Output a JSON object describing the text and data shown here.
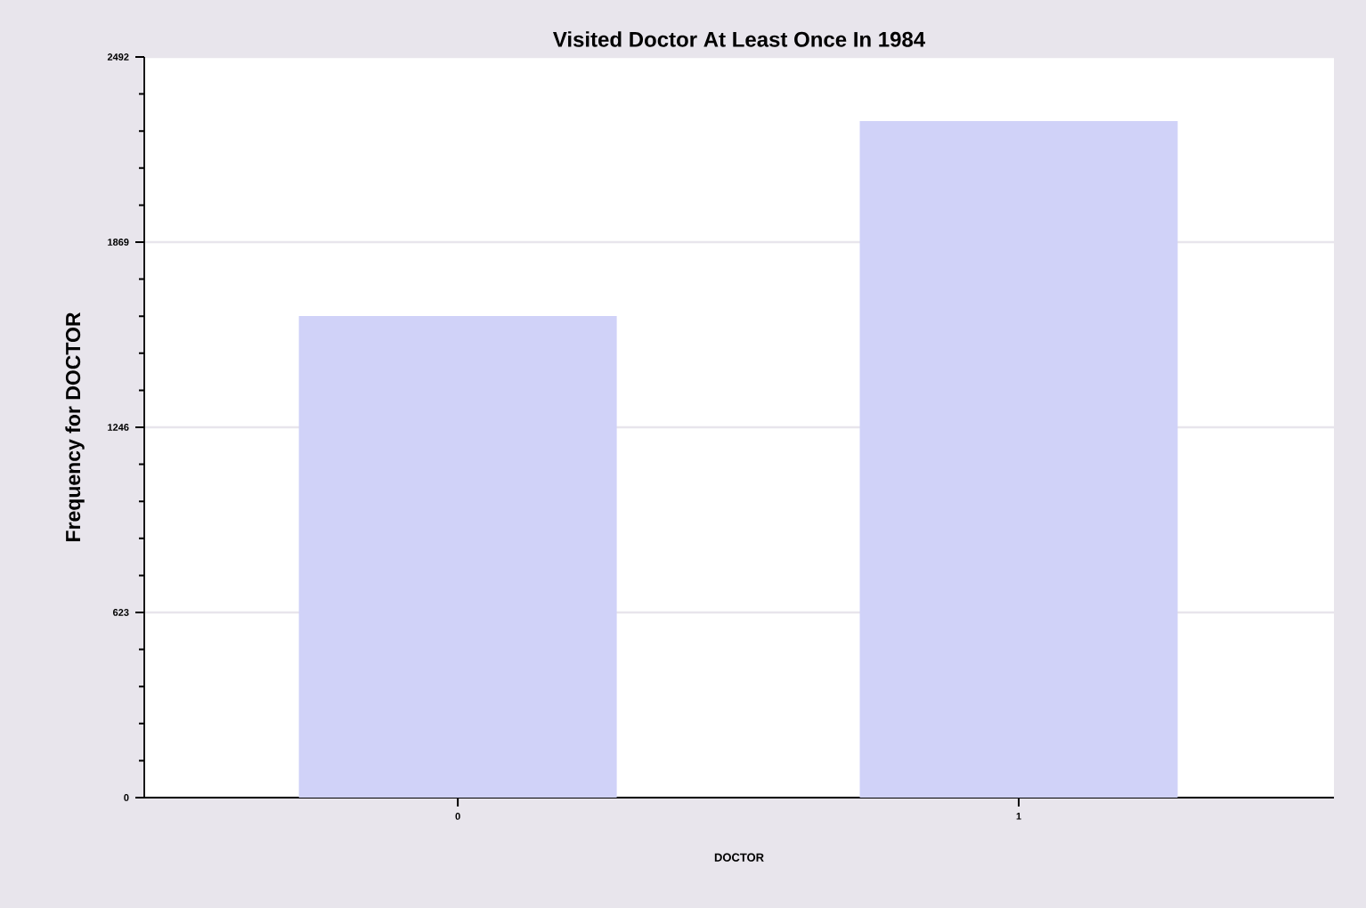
{
  "chart_data": {
    "type": "bar",
    "title": "Visited Doctor At Least Once In 1984",
    "xlabel": "DOCTOR",
    "ylabel": "Frequency for DOCTOR",
    "categories": [
      "0",
      "1"
    ],
    "values": [
      1620,
      2276
    ],
    "color": "#d0d2f8",
    "ylim": [
      0,
      2492
    ],
    "yticks": [
      0,
      623,
      1246,
      1869,
      2492
    ],
    "grid": "y"
  }
}
